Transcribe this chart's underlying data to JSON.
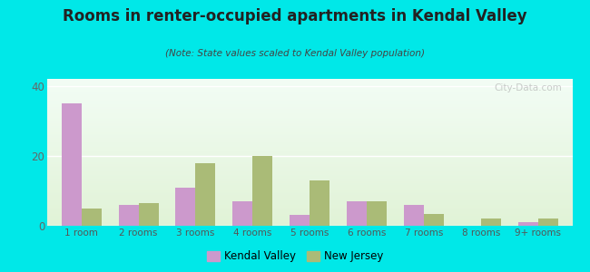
{
  "title": "Rooms in renter-occupied apartments in Kendal Valley",
  "subtitle": "(Note: State values scaled to Kendal Valley population)",
  "categories": [
    "1 room",
    "2 rooms",
    "3 rooms",
    "4 rooms",
    "5 rooms",
    "6 rooms",
    "7 rooms",
    "8 rooms",
    "9+ rooms"
  ],
  "kendal_valley": [
    35,
    6,
    11,
    7,
    3,
    7,
    6,
    0,
    1
  ],
  "new_jersey": [
    5,
    6.5,
    18,
    20,
    13,
    7,
    3.5,
    2,
    2
  ],
  "kendal_color": "#cc99cc",
  "nj_color": "#aabb77",
  "ylim": [
    0,
    42
  ],
  "yticks": [
    0,
    20,
    40
  ],
  "outer_bg": "#00e8e8",
  "bar_width": 0.35,
  "legend_labels": [
    "Kendal Valley",
    "New Jersey"
  ],
  "watermark": "City-Data.com"
}
